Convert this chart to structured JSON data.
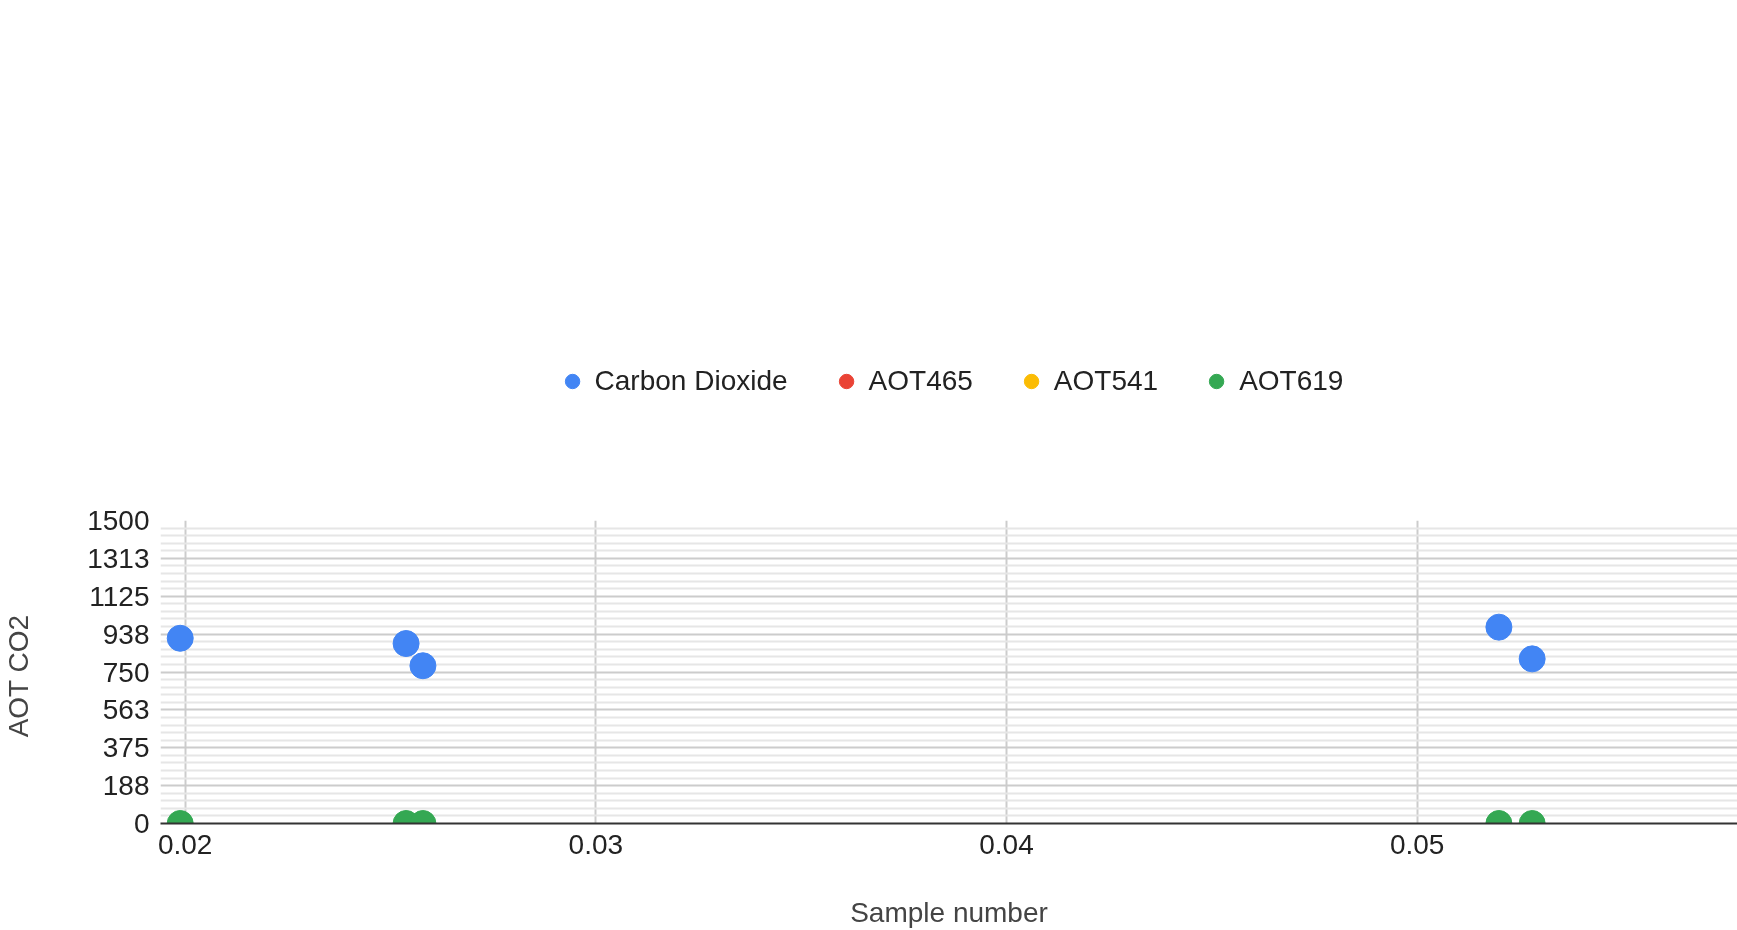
{
  "chart_data": {
    "type": "scatter",
    "xlabel": "Sample number",
    "ylabel": "AOT  CO2",
    "x": [
      0.01988,
      0.02538,
      0.02579,
      0.05199,
      0.0528
    ],
    "series": [
      {
        "name": "Carbon Dioxide",
        "color": "#4285f4",
        "values": [
          917,
          891,
          781,
          972,
          815
        ]
      },
      {
        "name": "AOT465",
        "color": "#ea4335",
        "values": [
          null,
          null,
          null,
          null,
          null
        ]
      },
      {
        "name": "AOT541",
        "color": "#fbbc04",
        "values": [
          null,
          null,
          null,
          null,
          null
        ]
      },
      {
        "name": "AOT619",
        "color": "#34a853",
        "values": [
          0,
          0,
          0,
          0,
          0
        ]
      }
    ],
    "xlim": [
      0.0194,
      0.0578
    ],
    "xticks": [
      0.02,
      0.03,
      0.04,
      0.05
    ],
    "ylim": [
      0,
      1500
    ],
    "yticks": [
      0,
      {
        "value": 187.5,
        "label": "188"
      },
      375,
      {
        "value": 562.5,
        "label": "563"
      },
      750,
      {
        "value": 937.5,
        "label": "938"
      },
      1125,
      {
        "value": 1312.5,
        "label": "1313"
      },
      1500
    ],
    "grid": true,
    "legend": "top",
    "marker": "circle"
  }
}
